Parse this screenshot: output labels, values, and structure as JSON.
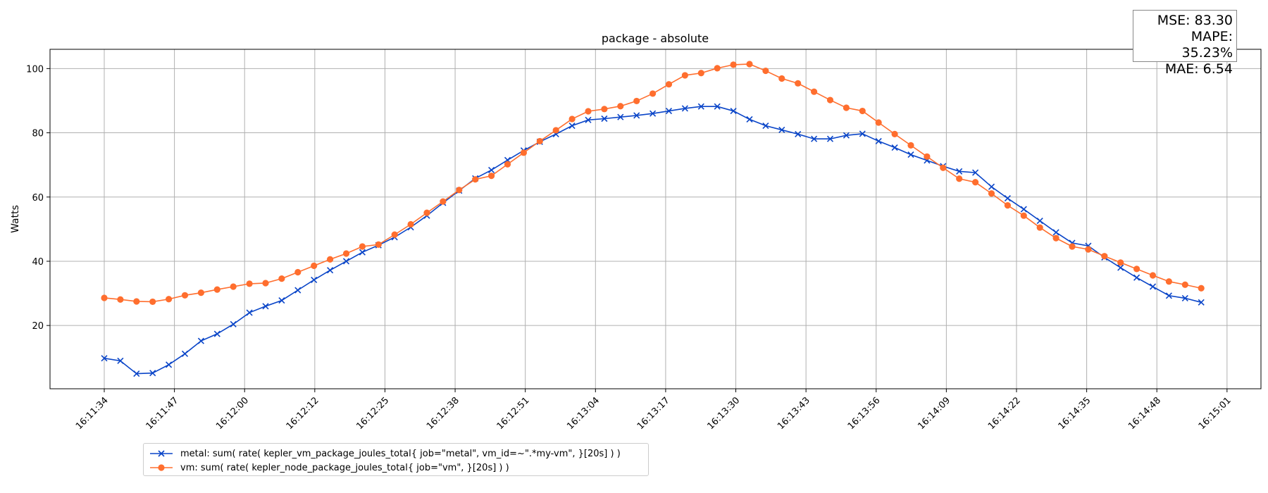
{
  "metrics": {
    "mse": "MSE: 83.30",
    "mape": "MAPE: 35.23%",
    "mae": "MAE: 6.54"
  },
  "colors": {
    "metal": "#0a45c8",
    "vm": "#ff6e2e",
    "grid": "#b0b0b0"
  },
  "chart_data": {
    "type": "line",
    "title": "package - absolute",
    "ylabel": "Watts",
    "xlabel": "",
    "ylim": [
      0.3,
      106
    ],
    "grid": true,
    "legend_position": "bottom-left, below plot",
    "x_tick_labels": [
      "16:11:34",
      "16:11:47",
      "16:12:00",
      "16:12:12",
      "16:12:25",
      "16:12:38",
      "16:12:51",
      "16:13:04",
      "16:13:17",
      "16:13:30",
      "16:13:43",
      "16:13:56",
      "16:14:09",
      "16:14:22",
      "16:14:35",
      "16:14:48",
      "16:15:01"
    ],
    "x_tick_index": [
      0,
      4.35,
      8.7,
      13.05,
      17.4,
      21.75,
      26.1,
      30.45,
      34.8,
      39.15,
      43.5,
      47.85,
      52.2,
      56.55,
      60.9,
      65.25,
      69.6
    ],
    "y_ticks": [
      20,
      40,
      60,
      80,
      100
    ],
    "series": [
      {
        "name": "metal: sum( rate( kepler_vm_package_joules_total{ job=\"metal\", vm_id=~\".*my-vm\", }[20s] ) )",
        "marker": "x",
        "values": [
          9.8,
          9.0,
          5.0,
          5.2,
          7.8,
          11.2,
          15.2,
          17.4,
          20.4,
          24.0,
          26.0,
          27.8,
          31.0,
          34.2,
          37.2,
          40.0,
          42.8,
          45.0,
          47.5,
          50.6,
          54.2,
          58.2,
          62.0,
          65.8,
          68.4,
          71.5,
          74.5,
          77.2,
          79.6,
          82.2,
          84.0,
          84.4,
          84.9,
          85.4,
          86.0,
          86.8,
          87.6,
          88.2,
          88.2,
          86.8,
          84.2,
          82.2,
          80.9,
          79.6,
          78.1,
          78.1,
          79.2,
          79.7,
          77.4,
          75.4,
          73.2,
          71.4,
          69.6,
          68.0,
          67.6,
          63.2,
          59.6,
          56.2,
          52.6,
          49.0,
          45.7,
          44.8,
          41.2,
          38.0,
          34.9,
          32.1,
          29.3,
          28.5,
          27.2
        ]
      },
      {
        "name": "vm: sum( rate( kepler_node_package_joules_total{ job=\"vm\", }[20s] ) )",
        "marker": "o",
        "values": [
          28.6,
          28.1,
          27.5,
          27.4,
          28.2,
          29.4,
          30.2,
          31.2,
          32.1,
          33.0,
          33.2,
          34.6,
          36.6,
          38.6,
          40.6,
          42.4,
          44.6,
          45.2,
          48.3,
          51.5,
          55.1,
          58.6,
          62.2,
          65.5,
          66.6,
          70.2,
          73.8,
          77.4,
          80.8,
          84.3,
          86.7,
          87.4,
          88.3,
          89.9,
          92.2,
          95.1,
          97.9,
          98.6,
          100.1,
          101.2,
          101.4,
          99.3,
          96.9,
          95.4,
          92.8,
          90.2,
          87.8,
          86.8,
          83.2,
          79.6,
          76.1,
          72.6,
          69.1,
          65.7,
          64.6,
          61.1,
          57.4,
          54.2,
          50.5,
          47.2,
          44.6,
          43.7,
          41.6,
          39.6,
          37.6,
          35.6,
          33.7,
          32.7,
          31.6
        ]
      }
    ]
  }
}
